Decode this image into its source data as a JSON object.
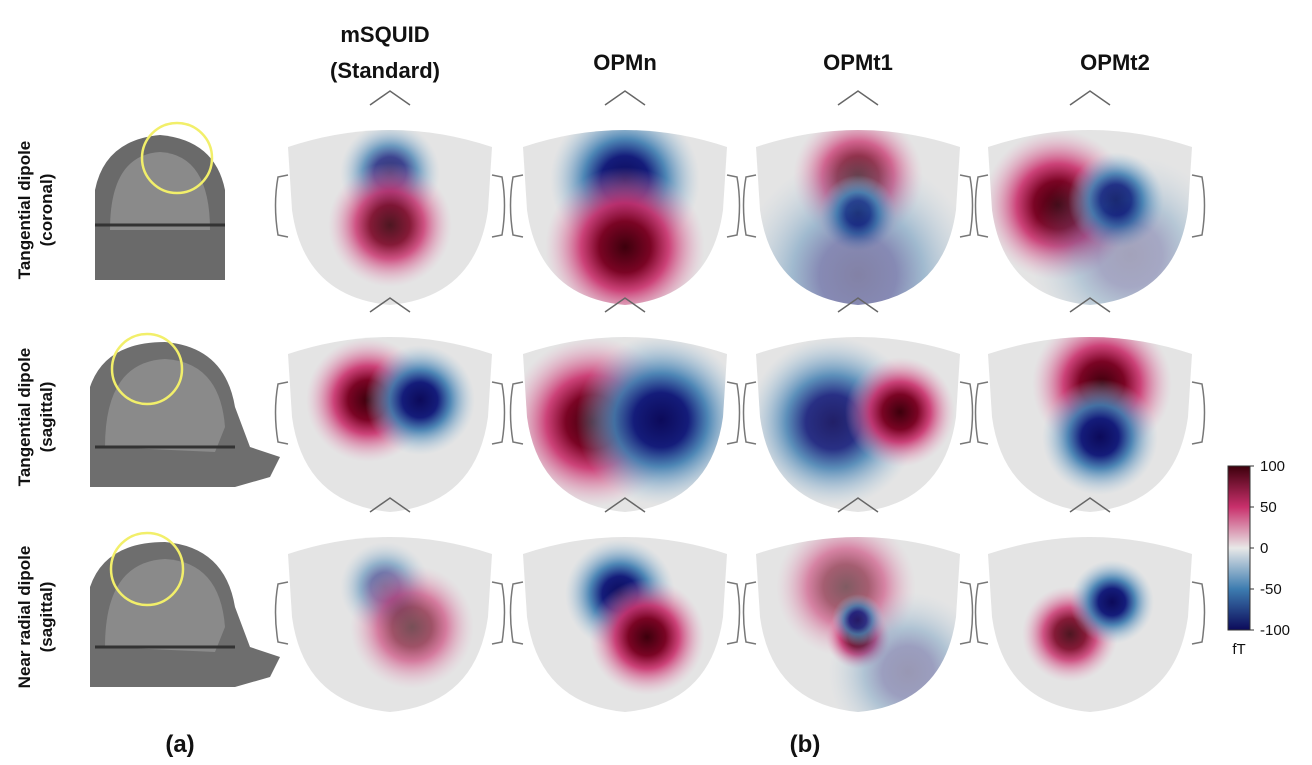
{
  "columns": [
    [
      "mSQUID",
      "(Standard)"
    ],
    [
      "OPMn"
    ],
    [
      "OPMt1"
    ],
    [
      "OPMt2"
    ]
  ],
  "rows": [
    [
      "Tangential dipole",
      "(coronal)"
    ],
    [
      "Tangential dipole",
      "(sagittal)"
    ],
    [
      "Near radial dipole",
      "(sagittal)"
    ]
  ],
  "colorbar": {
    "range": [
      -100,
      100
    ],
    "ticks": [
      100,
      50,
      0,
      -50,
      -100
    ],
    "unit": "fT"
  },
  "panels": [
    "(a)",
    "(b)"
  ]
}
